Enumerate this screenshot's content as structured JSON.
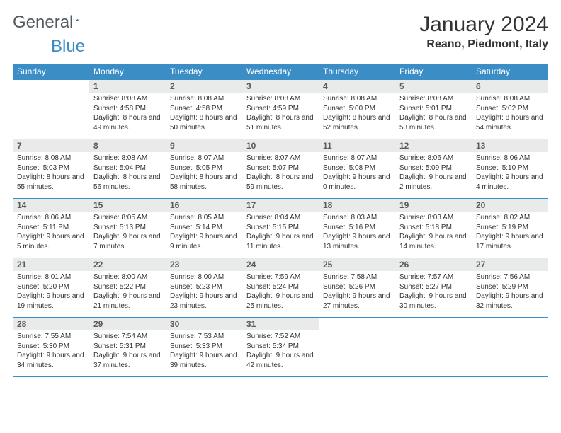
{
  "logo": {
    "word1": "General",
    "word2": "Blue",
    "triangle_color": "#2b6ea8"
  },
  "title": "January 2024",
  "location": "Reano, Piedmont, Italy",
  "colors": {
    "header_bg": "#3b8dc6",
    "daynum_bg": "#e9eaea",
    "border": "#3b8dc6"
  },
  "day_headers": [
    "Sunday",
    "Monday",
    "Tuesday",
    "Wednesday",
    "Thursday",
    "Friday",
    "Saturday"
  ],
  "weeks": [
    [
      null,
      {
        "n": "1",
        "sunrise": "8:08 AM",
        "sunset": "4:58 PM",
        "daylight": "8 hours and 49 minutes."
      },
      {
        "n": "2",
        "sunrise": "8:08 AM",
        "sunset": "4:58 PM",
        "daylight": "8 hours and 50 minutes."
      },
      {
        "n": "3",
        "sunrise": "8:08 AM",
        "sunset": "4:59 PM",
        "daylight": "8 hours and 51 minutes."
      },
      {
        "n": "4",
        "sunrise": "8:08 AM",
        "sunset": "5:00 PM",
        "daylight": "8 hours and 52 minutes."
      },
      {
        "n": "5",
        "sunrise": "8:08 AM",
        "sunset": "5:01 PM",
        "daylight": "8 hours and 53 minutes."
      },
      {
        "n": "6",
        "sunrise": "8:08 AM",
        "sunset": "5:02 PM",
        "daylight": "8 hours and 54 minutes."
      }
    ],
    [
      {
        "n": "7",
        "sunrise": "8:08 AM",
        "sunset": "5:03 PM",
        "daylight": "8 hours and 55 minutes."
      },
      {
        "n": "8",
        "sunrise": "8:08 AM",
        "sunset": "5:04 PM",
        "daylight": "8 hours and 56 minutes."
      },
      {
        "n": "9",
        "sunrise": "8:07 AM",
        "sunset": "5:05 PM",
        "daylight": "8 hours and 58 minutes."
      },
      {
        "n": "10",
        "sunrise": "8:07 AM",
        "sunset": "5:07 PM",
        "daylight": "8 hours and 59 minutes."
      },
      {
        "n": "11",
        "sunrise": "8:07 AM",
        "sunset": "5:08 PM",
        "daylight": "9 hours and 0 minutes."
      },
      {
        "n": "12",
        "sunrise": "8:06 AM",
        "sunset": "5:09 PM",
        "daylight": "9 hours and 2 minutes."
      },
      {
        "n": "13",
        "sunrise": "8:06 AM",
        "sunset": "5:10 PM",
        "daylight": "9 hours and 4 minutes."
      }
    ],
    [
      {
        "n": "14",
        "sunrise": "8:06 AM",
        "sunset": "5:11 PM",
        "daylight": "9 hours and 5 minutes."
      },
      {
        "n": "15",
        "sunrise": "8:05 AM",
        "sunset": "5:13 PM",
        "daylight": "9 hours and 7 minutes."
      },
      {
        "n": "16",
        "sunrise": "8:05 AM",
        "sunset": "5:14 PM",
        "daylight": "9 hours and 9 minutes."
      },
      {
        "n": "17",
        "sunrise": "8:04 AM",
        "sunset": "5:15 PM",
        "daylight": "9 hours and 11 minutes."
      },
      {
        "n": "18",
        "sunrise": "8:03 AM",
        "sunset": "5:16 PM",
        "daylight": "9 hours and 13 minutes."
      },
      {
        "n": "19",
        "sunrise": "8:03 AM",
        "sunset": "5:18 PM",
        "daylight": "9 hours and 14 minutes."
      },
      {
        "n": "20",
        "sunrise": "8:02 AM",
        "sunset": "5:19 PM",
        "daylight": "9 hours and 17 minutes."
      }
    ],
    [
      {
        "n": "21",
        "sunrise": "8:01 AM",
        "sunset": "5:20 PM",
        "daylight": "9 hours and 19 minutes."
      },
      {
        "n": "22",
        "sunrise": "8:00 AM",
        "sunset": "5:22 PM",
        "daylight": "9 hours and 21 minutes."
      },
      {
        "n": "23",
        "sunrise": "8:00 AM",
        "sunset": "5:23 PM",
        "daylight": "9 hours and 23 minutes."
      },
      {
        "n": "24",
        "sunrise": "7:59 AM",
        "sunset": "5:24 PM",
        "daylight": "9 hours and 25 minutes."
      },
      {
        "n": "25",
        "sunrise": "7:58 AM",
        "sunset": "5:26 PM",
        "daylight": "9 hours and 27 minutes."
      },
      {
        "n": "26",
        "sunrise": "7:57 AM",
        "sunset": "5:27 PM",
        "daylight": "9 hours and 30 minutes."
      },
      {
        "n": "27",
        "sunrise": "7:56 AM",
        "sunset": "5:29 PM",
        "daylight": "9 hours and 32 minutes."
      }
    ],
    [
      {
        "n": "28",
        "sunrise": "7:55 AM",
        "sunset": "5:30 PM",
        "daylight": "9 hours and 34 minutes."
      },
      {
        "n": "29",
        "sunrise": "7:54 AM",
        "sunset": "5:31 PM",
        "daylight": "9 hours and 37 minutes."
      },
      {
        "n": "30",
        "sunrise": "7:53 AM",
        "sunset": "5:33 PM",
        "daylight": "9 hours and 39 minutes."
      },
      {
        "n": "31",
        "sunrise": "7:52 AM",
        "sunset": "5:34 PM",
        "daylight": "9 hours and 42 minutes."
      },
      null,
      null,
      null
    ]
  ],
  "labels": {
    "sunrise": "Sunrise: ",
    "sunset": "Sunset: ",
    "daylight": "Daylight: "
  }
}
